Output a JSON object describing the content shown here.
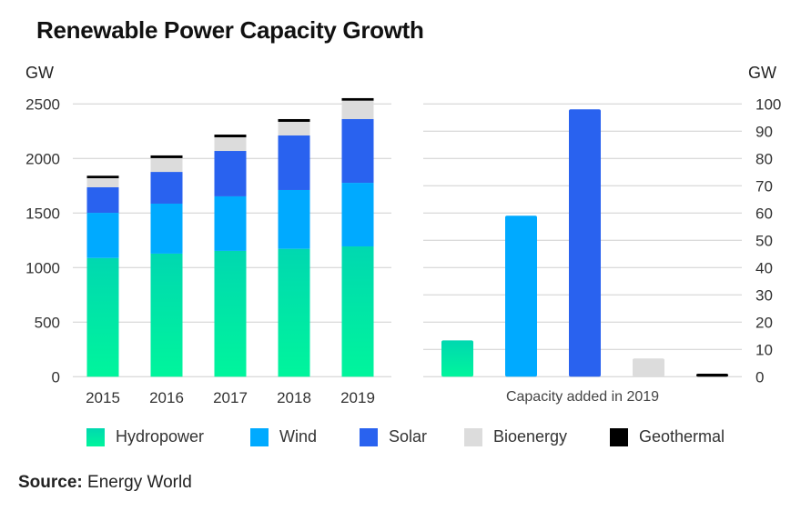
{
  "title": "Renewable Power Capacity Growth",
  "source": {
    "label": "Source:",
    "value": "Energy World"
  },
  "colors": {
    "Hydropower": "#00e5a8",
    "Wind": "#00aaff",
    "Solar": "#2962ef",
    "Bioenergy": "#dcdcdc",
    "Geothermal": "#000000"
  },
  "legend": [
    "Hydropower",
    "Wind",
    "Solar",
    "Bioenergy",
    "Geothermal"
  ],
  "chart_data": [
    {
      "type": "bar",
      "stacked": true,
      "ylabel": "GW",
      "ylim": [
        0,
        2500
      ],
      "yticks": [
        0,
        500,
        1000,
        1500,
        2000,
        2500
      ],
      "grid": true,
      "categories": [
        "2015",
        "2016",
        "2017",
        "2018",
        "2019"
      ],
      "series": [
        {
          "name": "Hydropower",
          "values": [
            1088,
            1128,
            1153,
            1172,
            1194
          ]
        },
        {
          "name": "Wind",
          "values": [
            414,
            458,
            500,
            539,
            583
          ]
        },
        {
          "name": "Solar",
          "values": [
            234,
            291,
            416,
            500,
            584
          ]
        },
        {
          "name": "Bioenergy",
          "values": [
            83,
            126,
            125,
            125,
            169
          ]
        },
        {
          "name": "Geothermal",
          "values": [
            23,
            25,
            25,
            25,
            23
          ]
        }
      ]
    },
    {
      "type": "bar",
      "ylabel": "GW",
      "xlabel": "Capacity added in 2019",
      "ylim": [
        0,
        100
      ],
      "yticks": [
        0,
        10,
        20,
        30,
        40,
        50,
        60,
        70,
        80,
        90,
        100
      ],
      "grid": true,
      "axis_side": "right",
      "categories": [
        "Hydropower",
        "Wind",
        "Solar",
        "Bioenergy",
        "Geothermal"
      ],
      "values": [
        13.3,
        59,
        98,
        6.7,
        1.1
      ]
    }
  ]
}
